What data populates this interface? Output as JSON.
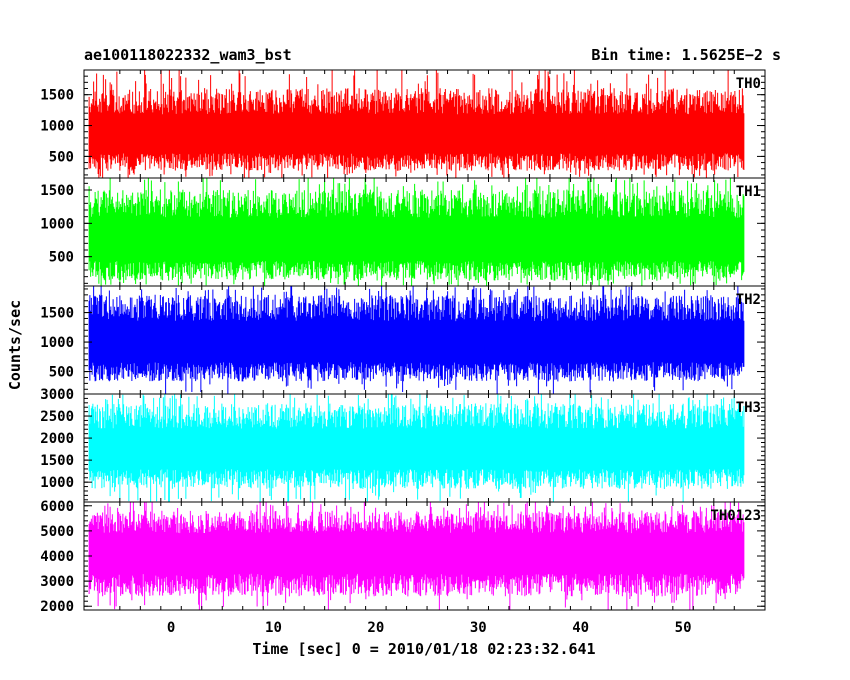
{
  "chart_data": {
    "type": "line",
    "title": "ae100118022332_wam3_bst",
    "subtitle": "Bin time: 1.5625E−2 s",
    "xlabel": "Time [sec] 0 = 2010/01/18 02:23:32.641",
    "ylabel": "Counts/sec",
    "xlim": [
      -8.5,
      58
    ],
    "x_ticks": [
      0,
      10,
      20,
      30,
      40,
      50
    ],
    "x_ticklabels": [
      "0",
      "10",
      "20",
      "30",
      "40",
      "50"
    ],
    "x_data_range": [
      -8,
      56
    ],
    "bin_time_s": 0.015625,
    "grid": false,
    "series": [
      {
        "name": "TH0",
        "color": "#ff0000",
        "ylim": [
          150,
          1900
        ],
        "y_ticks": [
          500,
          1000,
          1500
        ],
        "y_ticklabels": [
          "500",
          "1000",
          "1500"
        ],
        "mean": 800,
        "spread_low": 240,
        "spread_high": 1650
      },
      {
        "name": "TH1",
        "color": "#00ff00",
        "ylim": [
          60,
          1680
        ],
        "y_ticks": [
          500,
          1000,
          1500
        ],
        "y_ticklabels": [
          "500",
          "1000",
          "1500"
        ],
        "mean": 700,
        "spread_low": 110,
        "spread_high": 1550
      },
      {
        "name": "TH2",
        "color": "#0000ff",
        "ylim": [
          120,
          1950
        ],
        "y_ticks": [
          500,
          1000,
          1500
        ],
        "y_ticklabels": [
          "500",
          "1000",
          "1500"
        ],
        "mean": 950,
        "spread_low": 300,
        "spread_high": 1850
      },
      {
        "name": "TH3",
        "color": "#00ffff",
        "ylim": [
          550,
          3000
        ],
        "y_ticks": [
          1000,
          1500,
          2000,
          2500,
          3000
        ],
        "y_ticklabels": [
          "1000",
          "1500",
          "2000",
          "2500",
          "3000"
        ],
        "mean": 1700,
        "spread_low": 800,
        "spread_high": 2850
      },
      {
        "name": "TH0123",
        "color": "#ff00ff",
        "ylim": [
          1850,
          6150
        ],
        "y_ticks": [
          2000,
          3000,
          4000,
          5000,
          6000
        ],
        "y_ticklabels": [
          "2000",
          "3000",
          "4000",
          "5000",
          "6000"
        ],
        "mean": 4100,
        "spread_low": 2300,
        "spread_high": 5900
      }
    ]
  }
}
